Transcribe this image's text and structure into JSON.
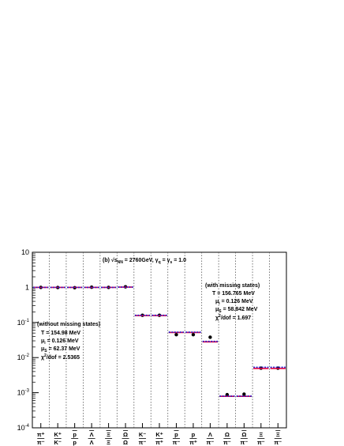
{
  "chart_data": {
    "type": "scatter",
    "title": "",
    "xlabel": "",
    "ylabel": "",
    "yscale": "log",
    "ylim": [
      0.0001,
      10
    ],
    "y_ticks": [
      {
        "value": 0.0001,
        "base": "10",
        "exp": "-4"
      },
      {
        "value": 0.001,
        "base": "10",
        "exp": "-3"
      },
      {
        "value": 0.01,
        "base": "10",
        "exp": "-2"
      },
      {
        "value": 0.1,
        "base": "10",
        "exp": "-1"
      },
      {
        "value": 1,
        "base": "1",
        "exp": ""
      },
      {
        "value": 10,
        "base": "10",
        "exp": ""
      }
    ],
    "categories": [
      {
        "num": "π⁺",
        "den": "π⁻",
        "overline_num": false
      },
      {
        "num": "K⁺",
        "den": "K⁻",
        "overline_num": false
      },
      {
        "num": "p",
        "den": "p",
        "overline_num": true
      },
      {
        "num": "Λ",
        "den": "Λ",
        "overline_num": true
      },
      {
        "num": "Ξ",
        "den": "Ξ",
        "overline_num": true
      },
      {
        "num": "Ω",
        "den": "Ω",
        "overline_num": true
      },
      {
        "num": "K⁻",
        "den": "π⁻",
        "overline_num": false
      },
      {
        "num": "K⁺",
        "den": "π⁺",
        "overline_num": false
      },
      {
        "num": "p",
        "den": "π⁻",
        "overline_num": true
      },
      {
        "num": "p",
        "den": "π⁺",
        "overline_num": false
      },
      {
        "num": "Λ",
        "den": "π⁻",
        "overline_num": false
      },
      {
        "num": "Ω",
        "den": "π⁻",
        "overline_num": false
      },
      {
        "num": "Ω",
        "den": "π⁻",
        "overline_num": true
      },
      {
        "num": "Ξ",
        "den": "π⁻",
        "overline_num": false
      },
      {
        "num": "Ξ",
        "den": "π⁻",
        "overline_num": true
      }
    ],
    "series": [
      {
        "marker": "circle",
        "color": "#000000",
        "values": [
          1.0,
          0.99,
          0.98,
          1.01,
          1.0,
          1.04,
          0.16,
          0.16,
          0.045,
          0.045,
          0.038,
          0.00088,
          0.00091,
          0.005,
          0.005
        ]
      },
      {
        "marker": "solid-line",
        "color": "#e8003c",
        "values": [
          1.0,
          1.0,
          1.0,
          1.0,
          1.0,
          1.02,
          0.157,
          0.157,
          0.052,
          0.052,
          0.028,
          0.00079,
          0.00079,
          0.0049,
          0.0049
        ]
      },
      {
        "marker": "dashed-line",
        "color": "#2020d0",
        "values": [
          1.0,
          1.0,
          1.0,
          1.0,
          1.0,
          1.02,
          0.16,
          0.16,
          0.053,
          0.053,
          0.029,
          0.0008,
          0.0008,
          0.0053,
          0.0053
        ]
      }
    ],
    "legend": "none",
    "grid": "vertical-dotted",
    "annotations": {
      "energy_prefix": "(b) √s",
      "energy_sub": "NN",
      "energy_value": " = 2760GeV, γ",
      "gamma_q_sub": "q",
      "gamma_eq": " = γ",
      "gamma_s_sub": "s",
      "gamma_value": " = 1.0",
      "with_missing": {
        "heading": "(with missing states)",
        "T": "T = 156.765 MeV",
        "mu_prefix": "μ",
        "mu_sub": "i",
        "mu_value": " = 0.126 MeV",
        "mus_prefix": "μ",
        "mus_sub": "S",
        "mus_value": " = 58.842 MeV",
        "chi_prefix": "χ",
        "chi_sup": "2",
        "chi_value": "/dof = 1.697"
      },
      "without_missing": {
        "heading": "(without missing states)",
        "T": "T = 154.98 MeV",
        "mu_prefix": "μ",
        "mu_sub": "i",
        "mu_value": " = 0.126 MeV",
        "mus_prefix": "μ",
        "mus_sub": "S",
        "mus_value": " = 62.37 MeV",
        "chi_prefix": "χ",
        "chi_sup": "2",
        "chi_value": "/dof = 2.5365"
      }
    }
  }
}
